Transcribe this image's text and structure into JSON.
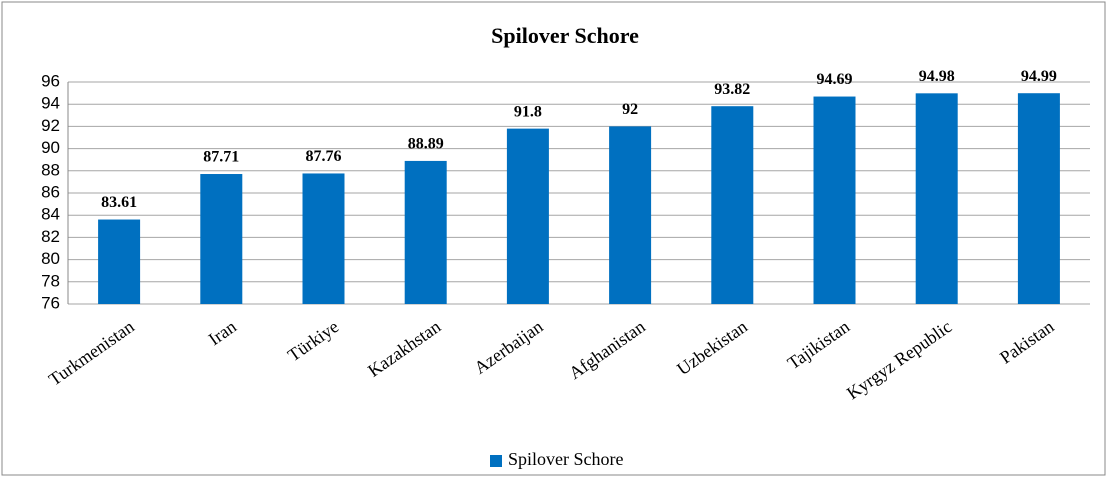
{
  "chart_data": {
    "type": "bar",
    "title": "Spilover Schore",
    "categories": [
      "Turkmenistan",
      "Iran",
      "Türkiye",
      "Kazakhstan",
      "Azerbaijan",
      "Afghanistan",
      "Uzbekistan",
      "Tajikistan",
      "Kyrgyz Republic",
      "Pakistan"
    ],
    "series": [
      {
        "name": "Spilover Schore",
        "color": "#0070c0",
        "values": [
          83.61,
          87.71,
          87.76,
          88.89,
          91.8,
          92,
          93.82,
          94.69,
          94.98,
          94.99
        ]
      }
    ],
    "ylim": [
      76,
      96
    ],
    "yticks": [
      76,
      78,
      80,
      82,
      84,
      86,
      88,
      90,
      92,
      94,
      96
    ],
    "grid": true,
    "legend": "bottom"
  }
}
